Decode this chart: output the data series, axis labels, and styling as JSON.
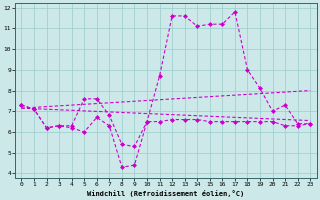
{
  "xlabel": "Windchill (Refroidissement éolien,°C)",
  "bg_color": "#cce8e8",
  "line_color": "#cc00cc",
  "grid_color": "#99cccc",
  "spine_color": "#336666",
  "tick_color": "#000000",
  "xlim": [
    -0.5,
    23.5
  ],
  "ylim": [
    3.8,
    12.2
  ],
  "yticks": [
    4,
    5,
    6,
    7,
    8,
    9,
    10,
    11,
    12
  ],
  "xticks": [
    0,
    1,
    2,
    3,
    4,
    5,
    6,
    7,
    8,
    9,
    10,
    11,
    12,
    13,
    14,
    15,
    16,
    17,
    18,
    19,
    20,
    21,
    22,
    23
  ],
  "line1_x": [
    0,
    1,
    2,
    3,
    4,
    5,
    6,
    7,
    8,
    9,
    10,
    11,
    12,
    13,
    14,
    15,
    16,
    17,
    18,
    19,
    20,
    21,
    22,
    23
  ],
  "line1_y": [
    7.3,
    7.1,
    6.2,
    6.3,
    6.3,
    7.6,
    7.6,
    6.8,
    5.4,
    5.3,
    6.5,
    8.7,
    11.6,
    11.6,
    11.1,
    11.2,
    11.2,
    11.8,
    9.0,
    8.1,
    7.0,
    7.3,
    6.4,
    6.4
  ],
  "line2_x": [
    0,
    1,
    2,
    3,
    4,
    5,
    6,
    7,
    8,
    9,
    10,
    11,
    12,
    13,
    14,
    15,
    16,
    17,
    18,
    19,
    20,
    21,
    22,
    23
  ],
  "line2_y": [
    7.3,
    7.1,
    6.2,
    6.3,
    6.2,
    6.0,
    6.7,
    6.3,
    4.3,
    4.4,
    6.5,
    6.5,
    6.6,
    6.6,
    6.6,
    6.5,
    6.5,
    6.5,
    6.5,
    6.5,
    6.5,
    6.3,
    6.3,
    6.4
  ],
  "line3_x": [
    0,
    23
  ],
  "line3_y": [
    7.15,
    8.0
  ],
  "line4_x": [
    0,
    23
  ],
  "line4_y": [
    7.15,
    6.55
  ]
}
